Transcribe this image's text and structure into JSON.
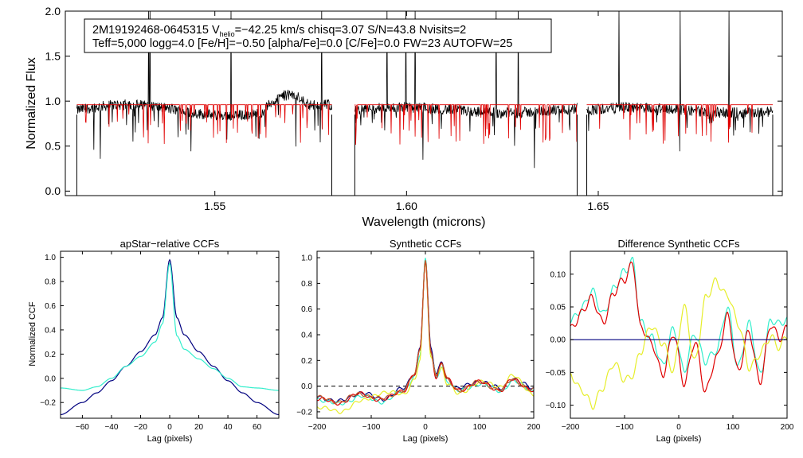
{
  "figure": {
    "info_line1_prefix": "2M19192468-0645315  V",
    "info_line1_sub": "helio",
    "info_line1_suffix": "=−42.25 km/s  chisq=3.07  S/N=43.8  Nvisits=2",
    "info_line2": "Teff=5,000 logg=4.0 [Fe/H]=−0.50 [alpha/Fe]=0.0 [C/Fe]=0.0 FW=23 AUTOFW=25"
  },
  "colors": {
    "black": "#000000",
    "red": "#e00000",
    "navy": "#00007f",
    "cyan": "#33eecc",
    "yellow": "#e6ee2a",
    "brown": "#c2582a"
  },
  "chart_data": [
    {
      "type": "line",
      "title": "",
      "xlabel": "Wavelength (microns)",
      "ylabel": "Normalized Flux",
      "xlim": [
        1.511,
        1.698
      ],
      "ylim": [
        -0.05,
        2.0
      ],
      "xticks": [
        1.55,
        1.6,
        1.65
      ],
      "xtick_labels": [
        "1.55",
        "1.60",
        "1.65"
      ],
      "yticks": [
        0.0,
        0.5,
        1.0,
        1.5,
        2.0
      ],
      "ytick_labels": [
        "0.0",
        "0.5",
        "1.0",
        "1.5",
        "2.0"
      ],
      "chip_ranges": [
        [
          1.514,
          1.5805
        ],
        [
          1.5865,
          1.6445
        ],
        [
          1.647,
          1.6955
        ]
      ],
      "series": [
        {
          "name": "observed",
          "color": "black",
          "level": 0.9
        },
        {
          "name": "model",
          "color": "red",
          "level": 0.96
        }
      ]
    },
    {
      "type": "line",
      "title": "apStar−relative CCFs",
      "xlabel": "Lag (pixels)",
      "ylabel": "Normalized CCF",
      "xlim": [
        -75,
        75
      ],
      "ylim": [
        -0.33,
        1.05
      ],
      "xticks": [
        -60,
        -40,
        -20,
        0,
        20,
        40,
        60
      ],
      "xtick_labels": [
        "−60",
        "−40",
        "−20",
        "0",
        "20",
        "40",
        "60"
      ],
      "yticks": [
        -0.2,
        0.0,
        0.2,
        0.4,
        0.6,
        0.8,
        1.0
      ],
      "ytick_labels": [
        "−0.2",
        "0.0",
        "0.2",
        "0.4",
        "0.6",
        "0.8",
        "1.0"
      ],
      "x": [
        -75,
        -60,
        -50,
        -40,
        -30,
        -20,
        -10,
        -5,
        0,
        5,
        10,
        20,
        30,
        40,
        50,
        60,
        75
      ],
      "series": [
        {
          "name": "ccf-1",
          "color": "navy",
          "values": [
            -0.3,
            -0.2,
            -0.12,
            -0.02,
            0.1,
            0.22,
            0.36,
            0.5,
            0.98,
            0.5,
            0.36,
            0.22,
            0.1,
            -0.02,
            -0.12,
            -0.2,
            -0.3
          ]
        },
        {
          "name": "ccf-2",
          "color": "cyan",
          "values": [
            -0.08,
            -0.1,
            -0.07,
            0.0,
            0.1,
            0.18,
            0.3,
            0.45,
            0.95,
            0.35,
            0.24,
            0.16,
            0.08,
            0.0,
            -0.07,
            -0.08,
            -0.1
          ]
        }
      ]
    },
    {
      "type": "line",
      "title": "Synthetic CCFs",
      "xlabel": "Lag (pixels)",
      "ylabel": "",
      "xlim": [
        -200,
        200
      ],
      "ylim": [
        -0.25,
        1.05
      ],
      "xticks": [
        -200,
        -100,
        0,
        100,
        200
      ],
      "xtick_labels": [
        "−200",
        "−100",
        "0",
        "100",
        "200"
      ],
      "yticks": [
        -0.2,
        0.0,
        0.2,
        0.4,
        0.6,
        0.8,
        1.0
      ],
      "ytick_labels": [
        "−0.2",
        "0.0",
        "0.2",
        "0.4",
        "0.6",
        "0.8",
        "1.0"
      ],
      "x": [
        -200,
        -160,
        -120,
        -80,
        -40,
        -20,
        -10,
        0,
        10,
        20,
        30,
        40,
        60,
        100,
        140,
        160,
        200
      ],
      "series": [
        {
          "name": "navy",
          "color": "navy",
          "values": [
            -0.08,
            -0.12,
            -0.05,
            -0.1,
            -0.02,
            0.1,
            0.3,
            0.98,
            0.3,
            0.08,
            0.2,
            0.06,
            -0.02,
            0.04,
            -0.02,
            0.06,
            -0.02
          ]
        },
        {
          "name": "cyan",
          "color": "cyan",
          "values": [
            -0.1,
            -0.14,
            -0.08,
            -0.12,
            -0.04,
            0.08,
            0.25,
            0.98,
            0.26,
            0.06,
            0.16,
            0.04,
            -0.04,
            0.02,
            -0.04,
            0.04,
            -0.04
          ]
        },
        {
          "name": "yellow",
          "color": "yellow",
          "values": [
            -0.16,
            -0.2,
            -0.12,
            -0.05,
            -0.06,
            0.05,
            0.2,
            0.96,
            0.22,
            0.1,
            0.14,
            0.02,
            -0.06,
            0.03,
            0.0,
            0.08,
            -0.06
          ]
        },
        {
          "name": "red",
          "color": "red",
          "values": [
            -0.1,
            -0.13,
            -0.06,
            -0.11,
            -0.03,
            0.09,
            0.27,
            0.98,
            0.27,
            0.07,
            0.18,
            0.05,
            -0.03,
            0.03,
            -0.03,
            0.05,
            -0.03
          ]
        },
        {
          "name": "brown",
          "color": "brown",
          "values": [
            -0.09,
            -0.12,
            -0.06,
            -0.1,
            -0.03,
            0.09,
            0.28,
            0.98,
            0.28,
            0.07,
            0.18,
            0.05,
            -0.03,
            0.03,
            -0.03,
            0.05,
            -0.03
          ]
        }
      ],
      "reference_line": 0.0
    },
    {
      "type": "line",
      "title": "Difference Synthetic CCFs",
      "xlabel": "Lag (pixels)",
      "ylabel": "",
      "xlim": [
        -200,
        200
      ],
      "ylim": [
        -0.12,
        0.135
      ],
      "xticks": [
        -200,
        -100,
        0,
        100,
        200
      ],
      "xtick_labels": [
        "−200",
        "−100",
        "0",
        "100",
        "200"
      ],
      "yticks": [
        -0.1,
        -0.05,
        0.0,
        0.05,
        0.1
      ],
      "ytick_labels": [
        "−0.10",
        "−0.05",
        "0.00",
        "0.05",
        "0.10"
      ],
      "x": [
        -200,
        -180,
        -160,
        -140,
        -120,
        -100,
        -85,
        -70,
        -50,
        -30,
        -10,
        10,
        30,
        50,
        70,
        90,
        110,
        130,
        150,
        170,
        185,
        200
      ],
      "series": [
        {
          "name": "cyan",
          "color": "cyan",
          "values": [
            0.03,
            0.05,
            0.07,
            0.04,
            0.08,
            0.1,
            0.12,
            0.03,
            0.0,
            -0.04,
            0.02,
            -0.05,
            0.01,
            -0.03,
            -0.02,
            0.05,
            -0.04,
            0.02,
            -0.05,
            0.03,
            0.02,
            0.03
          ]
        },
        {
          "name": "red",
          "color": "red",
          "values": [
            0.02,
            0.04,
            0.06,
            0.03,
            0.07,
            0.09,
            0.12,
            0.02,
            -0.01,
            -0.05,
            0.01,
            -0.07,
            0.0,
            -0.08,
            -0.03,
            0.04,
            -0.05,
            0.01,
            -0.06,
            0.02,
            0.0,
            0.02
          ]
        },
        {
          "name": "yellow",
          "color": "yellow",
          "values": [
            -0.05,
            -0.08,
            -0.1,
            -0.07,
            -0.04,
            -0.06,
            -0.05,
            -0.02,
            0.02,
            0.0,
            -0.05,
            0.05,
            -0.03,
            0.06,
            0.09,
            0.07,
            0.02,
            -0.04,
            -0.02,
            0.0,
            -0.01,
            0.01
          ]
        },
        {
          "name": "navy",
          "color": "navy",
          "values": [
            0,
            0,
            0,
            0,
            0,
            0,
            0,
            0,
            0,
            0,
            0,
            0,
            0,
            0,
            0,
            0,
            0,
            0,
            0,
            0,
            0,
            0
          ]
        }
      ]
    }
  ]
}
